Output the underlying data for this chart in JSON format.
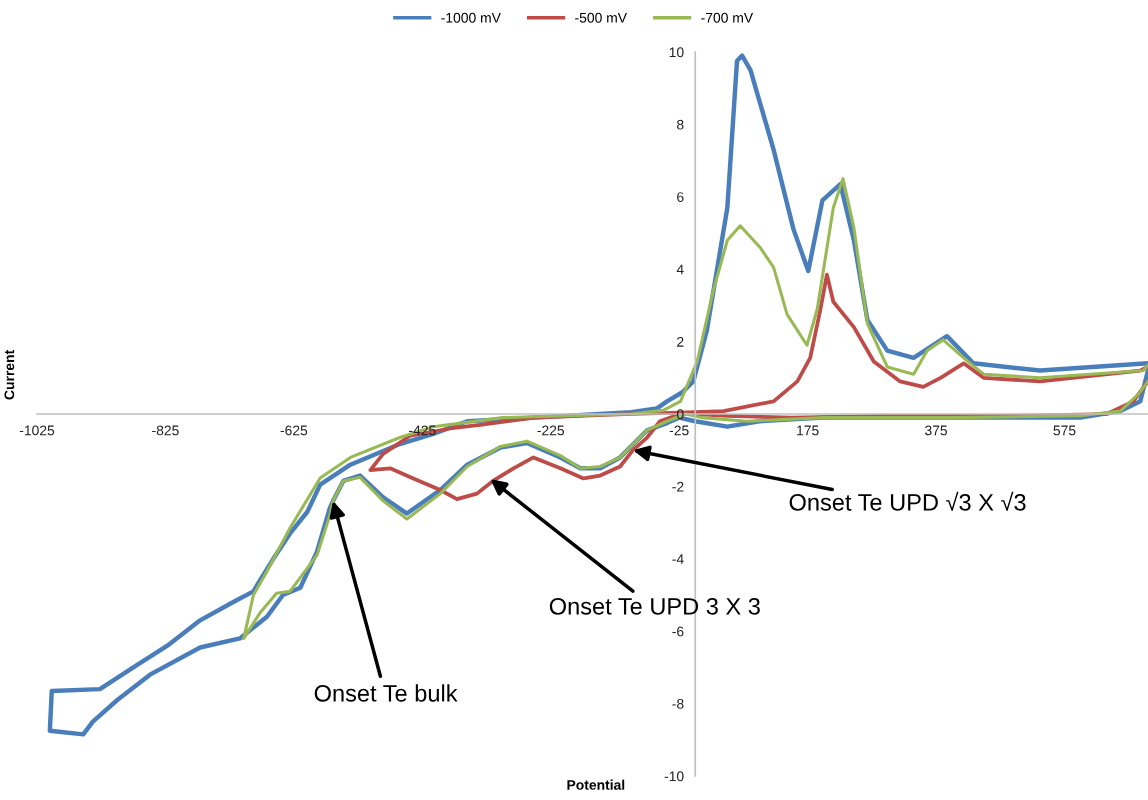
{
  "chart_data": {
    "type": "line",
    "xlabel": "Potential",
    "ylabel": "Current",
    "xlim": [
      -1025,
      705
    ],
    "ylim": [
      -10,
      10
    ],
    "xticks": [
      -1025,
      -825,
      -625,
      -425,
      -225,
      -25,
      175,
      375,
      575
    ],
    "yticks": [
      -10,
      -8,
      -6,
      -4,
      -2,
      0,
      2,
      4,
      6,
      8,
      10
    ],
    "grid": false,
    "legend": "top",
    "marker": "none",
    "line_style": "solid",
    "series": [
      {
        "name": "-1000 mV",
        "color": "#4a7ebb",
        "x": [
          705,
          693,
          662,
          600,
          400,
          200,
          100,
          50,
          0,
          -25,
          -44,
          -75,
          -117,
          -148,
          -179,
          -210,
          -262,
          -304,
          -355,
          -397,
          -449,
          -486,
          -522,
          -548,
          -564,
          -569,
          -589,
          -615,
          -642,
          -667,
          -709,
          -771,
          -849,
          -900,
          -938,
          -953,
          -1005,
          -1002,
          -927,
          -875,
          -822,
          -771,
          -720,
          -688,
          -678,
          -657,
          -631,
          -604,
          -584,
          -537,
          -460,
          -408,
          -355,
          -252,
          -100,
          -60,
          -44,
          -20,
          -3,
          18,
          50,
          65,
          73,
          86,
          122,
          153,
          176,
          198,
          226,
          247,
          268,
          299,
          340,
          392,
          433,
          537,
          705
        ],
        "values": [
          1.2,
          0.35,
          0.08,
          -0.1,
          -0.1,
          -0.1,
          -0.2,
          -0.35,
          -0.2,
          -0.1,
          -0.25,
          -0.45,
          -1.2,
          -1.5,
          -1.5,
          -1.2,
          -0.8,
          -0.93,
          -1.4,
          -2.1,
          -2.75,
          -2.3,
          -1.7,
          -1.85,
          -2.4,
          -2.6,
          -3.8,
          -4.8,
          -5.0,
          -5.6,
          -6.2,
          -6.45,
          -7.2,
          -7.9,
          -8.5,
          -8.85,
          -8.75,
          -7.65,
          -7.6,
          -7.0,
          -6.4,
          -5.7,
          -5.2,
          -4.9,
          -4.6,
          -4.0,
          -3.3,
          -2.7,
          -1.95,
          -1.4,
          -0.83,
          -0.55,
          -0.2,
          -0.1,
          0.05,
          0.15,
          0.35,
          0.6,
          0.9,
          2.3,
          5.7,
          9.75,
          9.9,
          9.5,
          7.3,
          5.1,
          3.95,
          5.9,
          6.35,
          4.8,
          2.6,
          1.75,
          1.55,
          2.15,
          1.4,
          1.2,
          1.4
        ]
      },
      {
        "name": "-500 mV",
        "color": "#be4b48",
        "x": [
          705,
          682,
          641,
          500,
          300,
          150,
          50,
          -20,
          -55,
          -75,
          -97,
          -117,
          -148,
          -174,
          -210,
          -252,
          -283,
          -315,
          -340,
          -371,
          -397,
          -439,
          -475,
          -506,
          -486,
          -444,
          -382,
          -335,
          -250,
          -100,
          0,
          44,
          122,
          159,
          179,
          195,
          205,
          215,
          247,
          278,
          319,
          355,
          382,
          418,
          449,
          537,
          693,
          705
        ],
        "values": [
          0.9,
          0.35,
          0,
          -0.05,
          -0.05,
          -0.1,
          -0.05,
          0.02,
          -0.2,
          -0.65,
          -1.0,
          -1.45,
          -1.7,
          -1.78,
          -1.5,
          -1.2,
          -1.5,
          -1.85,
          -2.2,
          -2.35,
          -2.1,
          -1.78,
          -1.5,
          -1.55,
          -1.1,
          -0.6,
          -0.4,
          -0.3,
          -0.1,
          0,
          0.05,
          0.08,
          0.35,
          0.9,
          1.55,
          2.9,
          3.85,
          3.1,
          2.4,
          1.45,
          0.9,
          0.75,
          1.0,
          1.4,
          1.0,
          0.9,
          1.2,
          1.3
        ]
      },
      {
        "name": "-700 mV",
        "color": "#98b954",
        "x": [
          705,
          690,
          662,
          600,
          400,
          200,
          80,
          10,
          -15,
          -44,
          -75,
          -117,
          -148,
          -179,
          -210,
          -262,
          -304,
          -355,
          -397,
          -449,
          -486,
          -522,
          -548,
          -564,
          -569,
          -589,
          -631,
          -652,
          -678,
          -703,
          -688,
          -667,
          -631,
          -584,
          -537,
          -460,
          -408,
          -300,
          -100,
          -50,
          -23,
          3,
          28,
          50,
          70,
          101,
          122,
          143,
          174,
          190,
          215,
          230,
          247,
          268,
          299,
          340,
          361,
          386,
          418,
          449,
          537,
          698,
          705
        ],
        "values": [
          0.9,
          0.55,
          0.08,
          -0.05,
          -0.1,
          -0.1,
          -0.2,
          -0.1,
          0,
          -0.2,
          -0.45,
          -1.2,
          -1.45,
          -1.5,
          -1.15,
          -0.75,
          -0.9,
          -1.45,
          -2.2,
          -2.9,
          -2.4,
          -1.75,
          -1.85,
          -2.4,
          -2.8,
          -3.9,
          -4.9,
          -4.95,
          -5.5,
          -6.2,
          -5.0,
          -4.35,
          -3.15,
          -1.77,
          -1.2,
          -0.65,
          -0.35,
          -0.1,
          0,
          0.1,
          0.35,
          1.45,
          3.4,
          4.8,
          5.2,
          4.6,
          4.05,
          2.75,
          1.9,
          2.9,
          5.7,
          6.5,
          5.15,
          2.5,
          1.3,
          1.1,
          1.75,
          2.05,
          1.55,
          1.1,
          1.0,
          1.2,
          1.35
        ]
      }
    ],
    "annotations": [
      {
        "text": "Onset Te bulk",
        "x": -564,
        "y": -2.4
      },
      {
        "text": "Onset Te UPD 3 X 3",
        "x": -319,
        "y": -1.8
      },
      {
        "text": "Onset Te UPD √3 X √3",
        "x": -97,
        "y": -1.0
      }
    ]
  }
}
